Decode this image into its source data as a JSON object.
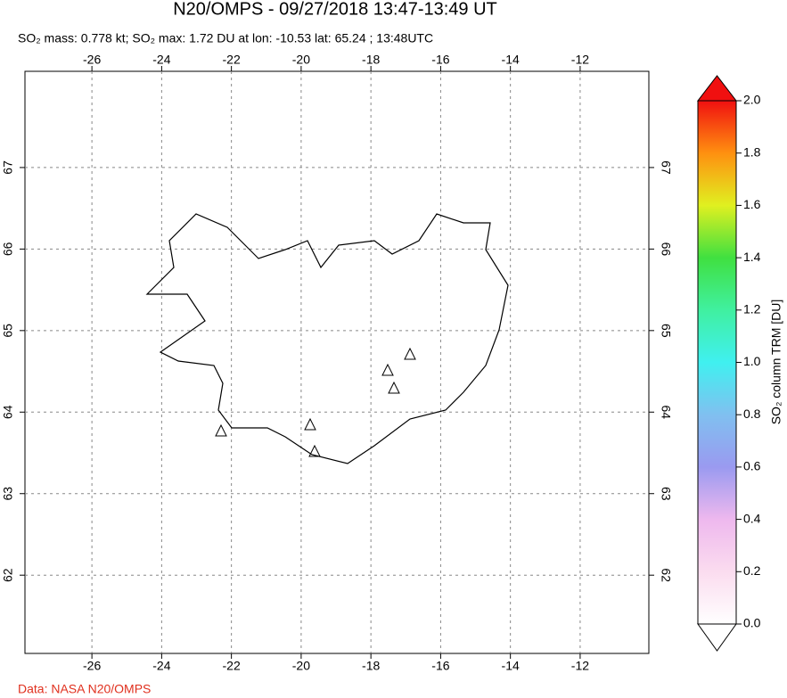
{
  "header": {
    "title": "N20/OMPS - 09/27/2018 13:47-13:49 UT",
    "subtitle": "SO₂ mass: 0.778 kt; SO₂ max: 1.72 DU at lon: -10.53 lat: 65.24 ; 13:48UTC"
  },
  "map": {
    "lonlim": [
      -27.92,
      -10.03
    ],
    "latlim": [
      61.04,
      68.18
    ],
    "lon_ticks": [
      -26,
      -24,
      -22,
      -20,
      -18,
      -16,
      -14,
      -12
    ],
    "lat_ticks": [
      62,
      63,
      64,
      65,
      66,
      67
    ]
  },
  "colorbar": {
    "label": "SO₂ column TRM [DU]",
    "range": [
      0,
      2
    ],
    "ticks": [
      {
        "value": 0,
        "label": "0.0"
      },
      0.2,
      0.4,
      0.6,
      0.8,
      {
        "value": 1,
        "label": "1.0"
      },
      1.2,
      1.4,
      1.6,
      1.8,
      {
        "value": 2,
        "label": "2.0"
      }
    ]
  },
  "credit": "Data: NASA N20/OMPS"
}
